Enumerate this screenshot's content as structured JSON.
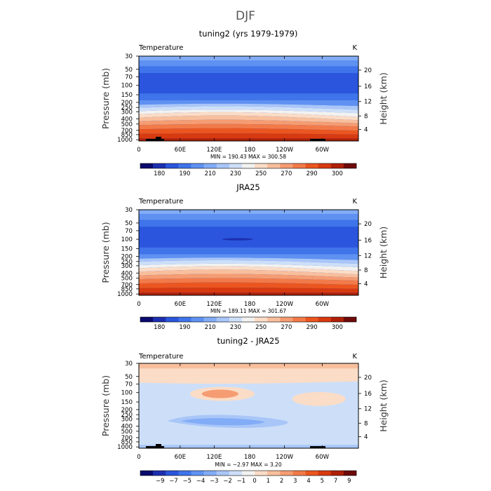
{
  "figure": {
    "main_title": "DJF"
  },
  "chart_data": [
    {
      "type": "contour",
      "title": "tuning2 (yrs 1979-1979)",
      "variable": "Temperature",
      "units": "K",
      "ylabel": "Pressure (mb)",
      "y2label": "Height (km)",
      "xticks": [
        "0",
        "60E",
        "120E",
        "180",
        "120W",
        "60W"
      ],
      "pressure_ticks": [
        "30",
        "50",
        "70",
        "100",
        "150",
        "200",
        "250",
        "300",
        "400",
        "500",
        "700",
        "850",
        "1000"
      ],
      "height_ticks": [
        "20",
        "16",
        "12",
        "8",
        "4"
      ],
      "stats": "MIN = 190.43   MAX = 300.58",
      "colorbar_labels": [
        "180",
        "190",
        "210",
        "230",
        "250",
        "270",
        "290",
        "300"
      ],
      "color_scale": [
        "#0a0a6e",
        "#1c2fb0",
        "#2a55dc",
        "#3f74ea",
        "#5f91f2",
        "#82acf6",
        "#a9c6f8",
        "#cddff8",
        "#f2f2f0",
        "#fbdcc6",
        "#f8bf9d",
        "#f59c72",
        "#f27a49",
        "#eb5620",
        "#d83a10",
        "#b02008",
        "#6e0a0a"
      ]
    },
    {
      "type": "contour",
      "title": "JRA25",
      "variable": "Temperature",
      "units": "K",
      "ylabel": "Pressure (mb)",
      "y2label": "Height (km)",
      "xticks": [
        "0",
        "60E",
        "120E",
        "180",
        "120W",
        "60W"
      ],
      "pressure_ticks": [
        "30",
        "50",
        "70",
        "100",
        "150",
        "200",
        "250",
        "300",
        "400",
        "500",
        "700",
        "850",
        "1000"
      ],
      "height_ticks": [
        "20",
        "16",
        "12",
        "8",
        "4"
      ],
      "stats": "MIN = 189.11   MAX = 301.67",
      "colorbar_labels": [
        "180",
        "190",
        "210",
        "230",
        "250",
        "270",
        "290",
        "300"
      ],
      "color_scale": [
        "#0a0a6e",
        "#1c2fb0",
        "#2a55dc",
        "#3f74ea",
        "#5f91f2",
        "#82acf6",
        "#a9c6f8",
        "#cddff8",
        "#f2f2f0",
        "#fbdcc6",
        "#f8bf9d",
        "#f59c72",
        "#f27a49",
        "#eb5620",
        "#d83a10",
        "#b02008",
        "#6e0a0a"
      ]
    },
    {
      "type": "contour",
      "title": "tuning2 - JRA25",
      "variable": "Temperature",
      "units": "K",
      "ylabel": "Pressure (mb)",
      "y2label": "Height (km)",
      "xticks": [
        "0",
        "60E",
        "120E",
        "180",
        "120W",
        "60W"
      ],
      "pressure_ticks": [
        "30",
        "50",
        "70",
        "100",
        "150",
        "200",
        "250",
        "300",
        "400",
        "500",
        "700",
        "850",
        "1000"
      ],
      "height_ticks": [
        "20",
        "16",
        "12",
        "8",
        "4"
      ],
      "stats": "MIN = −2.97   MAX =    3.20",
      "colorbar_labels": [
        "−9",
        "−7",
        "−5",
        "−4",
        "−3",
        "−2",
        "−1",
        "0",
        "1",
        "2",
        "3",
        "4",
        "5",
        "7",
        "9"
      ],
      "color_scale": [
        "#0a0a6e",
        "#1c2fb0",
        "#2a55dc",
        "#3f74ea",
        "#5f91f2",
        "#82acf6",
        "#a9c6f8",
        "#cddff8",
        "#f2f2f0",
        "#fbdcc6",
        "#f8bf9d",
        "#f59c72",
        "#f27a49",
        "#eb5620",
        "#d83a10",
        "#b02008",
        "#6e0a0a"
      ]
    }
  ]
}
